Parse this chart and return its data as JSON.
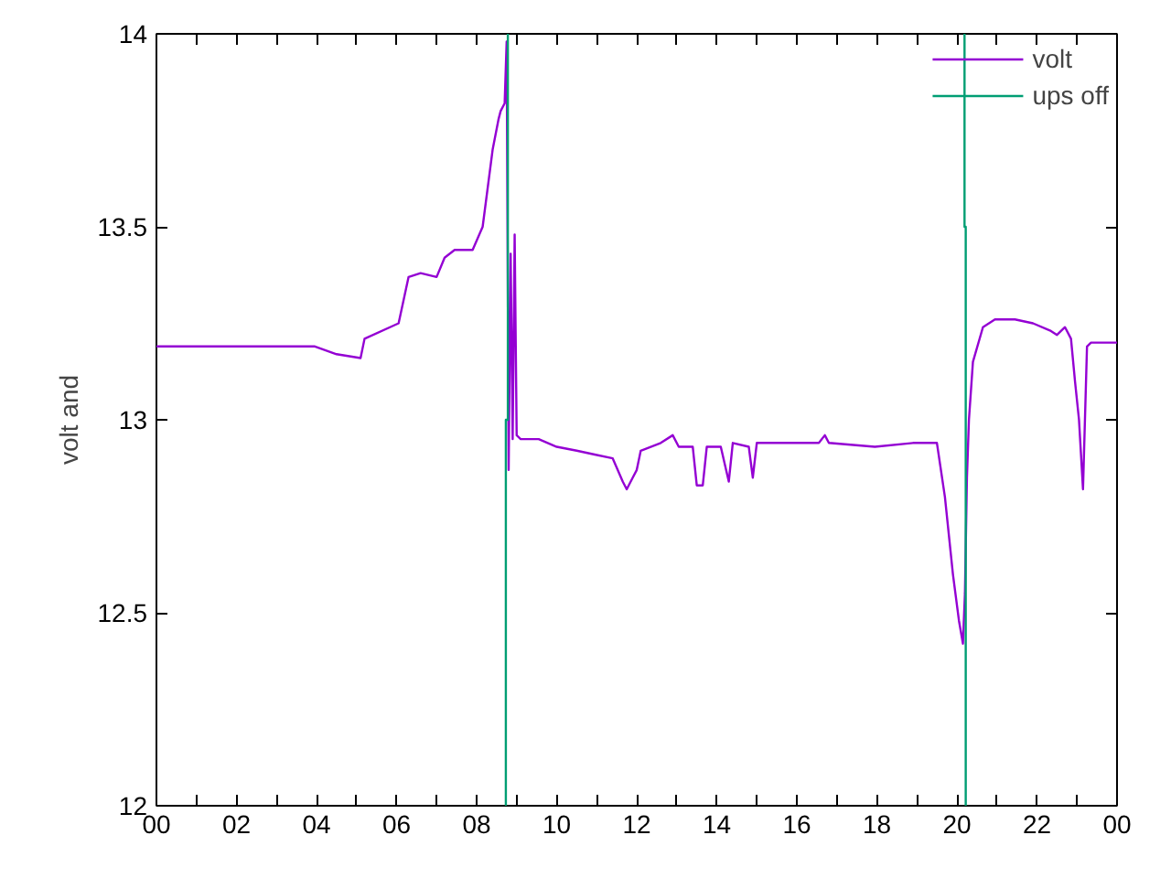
{
  "chart_data": {
    "type": "line",
    "ylabel": "volt and",
    "legend": "top right",
    "grid": false,
    "xlim": [
      0,
      24
    ],
    "ylim": [
      12,
      14
    ],
    "xticks": [
      {
        "value": 0,
        "label": "00"
      },
      {
        "value": 1,
        "label": null
      },
      {
        "value": 2,
        "label": "02"
      },
      {
        "value": 3,
        "label": null
      },
      {
        "value": 4,
        "label": "04"
      },
      {
        "value": 5,
        "label": null
      },
      {
        "value": 6,
        "label": "06"
      },
      {
        "value": 7,
        "label": null
      },
      {
        "value": 8,
        "label": "08"
      },
      {
        "value": 9,
        "label": null
      },
      {
        "value": 10,
        "label": "10"
      },
      {
        "value": 11,
        "label": null
      },
      {
        "value": 12,
        "label": "12"
      },
      {
        "value": 13,
        "label": null
      },
      {
        "value": 14,
        "label": "14"
      },
      {
        "value": 15,
        "label": null
      },
      {
        "value": 16,
        "label": "16"
      },
      {
        "value": 17,
        "label": null
      },
      {
        "value": 18,
        "label": "18"
      },
      {
        "value": 19,
        "label": null
      },
      {
        "value": 20,
        "label": "20"
      },
      {
        "value": 21,
        "label": null
      },
      {
        "value": 22,
        "label": "22"
      },
      {
        "value": 23,
        "label": null
      },
      {
        "value": 24,
        "label": "00"
      }
    ],
    "yticks": [
      12,
      12.5,
      13,
      13.5,
      14
    ],
    "series": [
      {
        "name": "volt",
        "color": "#9400d3",
        "x": [
          0,
          1,
          2,
          3,
          3.96,
          4.5,
          5.1,
          5.2,
          6.05,
          6.3,
          6.6,
          7.0,
          7.2,
          7.45,
          7.9,
          8.15,
          8.4,
          8.55,
          8.6,
          8.7,
          8.75,
          8.8,
          8.85,
          8.9,
          8.95,
          9.0,
          9.1,
          9.55,
          10.0,
          10.5,
          10.95,
          11.4,
          11.65,
          11.75,
          11.9,
          12.0,
          12.1,
          12.6,
          12.9,
          13.05,
          13.4,
          13.5,
          13.65,
          13.75,
          14.1,
          14.3,
          14.4,
          14.8,
          14.9,
          15.0,
          16.55,
          16.7,
          16.8,
          17.95,
          18.9,
          19.5,
          19.7,
          19.9,
          20.05,
          20.15,
          20.2,
          20.25,
          20.3,
          20.4,
          20.65,
          20.95,
          21.45,
          21.9,
          22.35,
          22.5,
          22.7,
          22.85,
          22.95,
          23.05,
          23.15,
          23.25,
          23.35,
          24
        ],
        "values": [
          13.19,
          13.19,
          13.19,
          13.19,
          13.19,
          13.17,
          13.16,
          13.21,
          13.25,
          13.37,
          13.38,
          13.37,
          13.42,
          13.44,
          13.44,
          13.5,
          13.7,
          13.78,
          13.8,
          13.82,
          13.98,
          12.87,
          13.43,
          12.95,
          13.48,
          12.96,
          12.95,
          12.95,
          12.93,
          12.92,
          12.91,
          12.9,
          12.84,
          12.82,
          12.85,
          12.87,
          12.92,
          12.94,
          12.96,
          12.93,
          12.93,
          12.83,
          12.83,
          12.93,
          12.93,
          12.84,
          12.94,
          12.93,
          12.85,
          12.94,
          12.94,
          12.96,
          12.94,
          12.93,
          12.94,
          12.94,
          12.8,
          12.6,
          12.48,
          12.42,
          12.55,
          12.85,
          13.0,
          13.15,
          13.24,
          13.26,
          13.26,
          13.25,
          13.23,
          13.22,
          13.24,
          13.21,
          13.1,
          13.0,
          12.82,
          13.19,
          13.2,
          13.2
        ]
      },
      {
        "name": "ups off",
        "color": "#009e73",
        "x": [
          8.73,
          8.73,
          8.78,
          8.78,
          8.8,
          20.19,
          20.19,
          20.22,
          20.22
        ],
        "values": [
          12,
          13,
          13,
          14,
          null,
          14,
          13.5,
          13.5,
          12
        ]
      }
    ]
  }
}
